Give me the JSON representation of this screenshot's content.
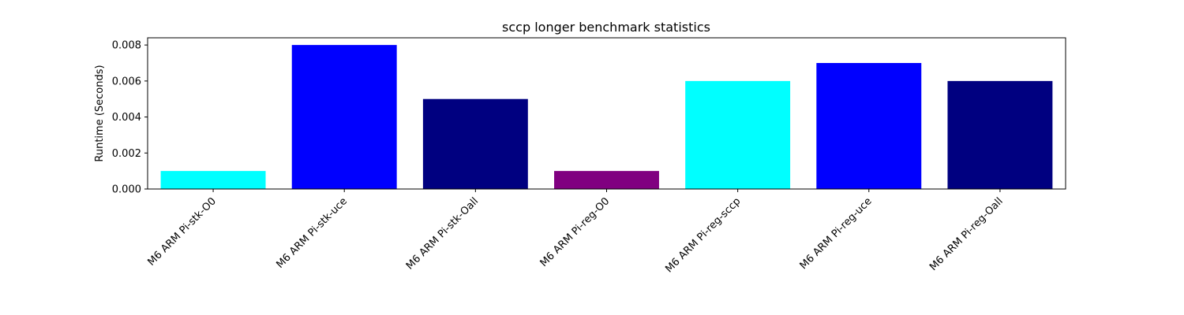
{
  "chart_data": {
    "type": "bar",
    "title": "sccp longer benchmark statistics",
    "xlabel": "",
    "ylabel": "Runtime (Seconds)",
    "ylim": [
      0,
      0.0084
    ],
    "yticks": [
      0.0,
      0.002,
      0.004,
      0.006,
      0.008
    ],
    "ytick_labels": [
      "0.000",
      "0.002",
      "0.004",
      "0.006",
      "0.008"
    ],
    "categories": [
      "M6 ARM Pi-stk-O0",
      "M6 ARM Pi-stk-uce",
      "M6 ARM Pi-stk-Oall",
      "M6 ARM Pi-reg-O0",
      "M6 ARM Pi-reg-sccp",
      "M6 ARM Pi-reg-uce",
      "M6 ARM Pi-reg-Oall"
    ],
    "values": [
      0.001,
      0.008,
      0.005,
      0.001,
      0.006,
      0.007,
      0.006
    ],
    "colors": [
      "#00ffff",
      "#0000ff",
      "#000080",
      "#800080",
      "#00ffff",
      "#0000ff",
      "#000080"
    ],
    "grid": false,
    "legend": "none"
  }
}
